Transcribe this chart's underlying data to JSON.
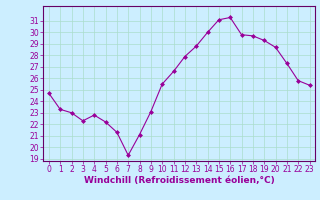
{
  "x": [
    0,
    1,
    2,
    3,
    4,
    5,
    6,
    7,
    8,
    9,
    10,
    11,
    12,
    13,
    14,
    15,
    16,
    17,
    18,
    19,
    20,
    21,
    22,
    23
  ],
  "y": [
    24.7,
    23.3,
    23.0,
    22.3,
    22.8,
    22.2,
    21.3,
    19.3,
    21.1,
    23.1,
    25.5,
    26.6,
    27.9,
    28.8,
    30.0,
    31.1,
    31.3,
    29.8,
    29.7,
    29.3,
    28.7,
    27.3,
    25.8,
    25.4
  ],
  "ylim": [
    19,
    32
  ],
  "xlim": [
    -0.5,
    23.5
  ],
  "yticks": [
    19,
    20,
    21,
    22,
    23,
    24,
    25,
    26,
    27,
    28,
    29,
    30,
    31
  ],
  "xticks": [
    0,
    1,
    2,
    3,
    4,
    5,
    6,
    7,
    8,
    9,
    10,
    11,
    12,
    13,
    14,
    15,
    16,
    17,
    18,
    19,
    20,
    21,
    22,
    23
  ],
  "xlabel": "Windchill (Refroidissement éolien,°C)",
  "line_color": "#990099",
  "marker_color": "#990099",
  "bg_color": "#cceeff",
  "grid_color": "#aaddcc",
  "title_color": "#990099",
  "axis_color": "#660066",
  "tick_color": "#990099",
  "label_fontsize": 6.5,
  "tick_fontsize": 5.5
}
